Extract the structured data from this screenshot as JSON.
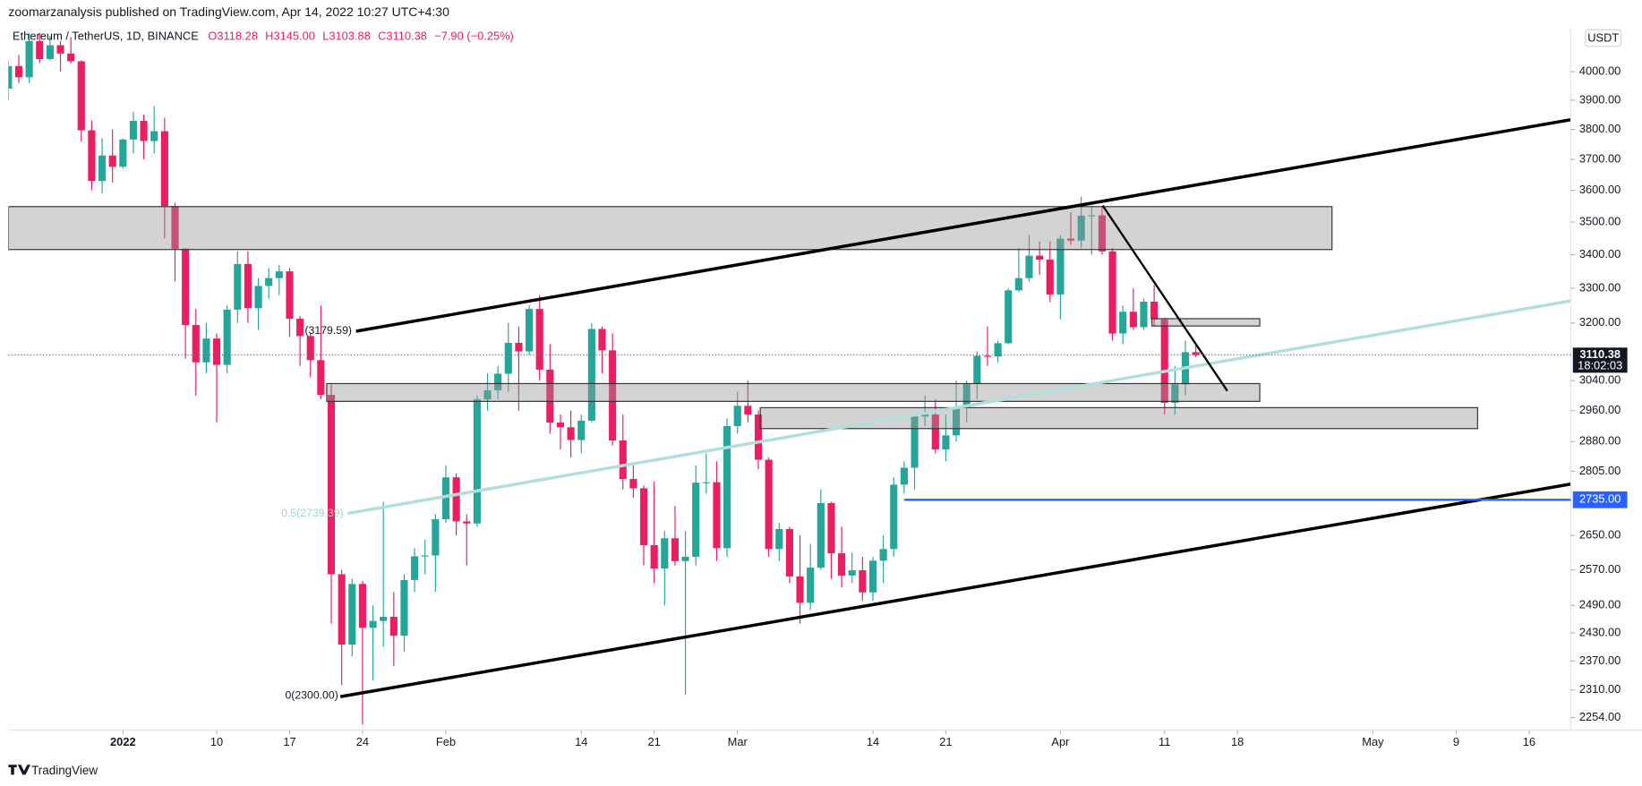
{
  "header": {
    "publisher": "zoomarzanalysis published on TradingView.com, Apr 14, 2022 10:27 UTC+4:30",
    "brand": "TradingView"
  },
  "chart_data": {
    "type": "candlestick",
    "title": "Ethereum / TetherUS, 1D, BINANCE",
    "ohlc_labels": [
      "O3118.28",
      "H3145.00",
      "L3103.88",
      "C3110.38",
      "−7.90 (−0.25%)"
    ],
    "currency": "USDT",
    "up_color": "#26a69a",
    "down_color": "#e91e63",
    "log_scale": true,
    "grid": false,
    "xlim": [
      "2021-12-21",
      "2022-05-20"
    ],
    "ylim": [
      2229,
      4152
    ],
    "yticks": [
      {
        "value": 4000,
        "label": "4000.00"
      },
      {
        "value": 3900,
        "label": "3900.00"
      },
      {
        "value": 3800,
        "label": "3800.00"
      },
      {
        "value": 3700,
        "label": "3700.00"
      },
      {
        "value": 3600,
        "label": "3600.00"
      },
      {
        "value": 3500,
        "label": "3500.00"
      },
      {
        "value": 3400,
        "label": "3400.00"
      },
      {
        "value": 3300,
        "label": "3300.00"
      },
      {
        "value": 3200,
        "label": "3200.00"
      },
      {
        "value": 3040,
        "label": "3040.00"
      },
      {
        "value": 2960,
        "label": "2960.00"
      },
      {
        "value": 2880,
        "label": "2880.00"
      },
      {
        "value": 2805,
        "label": "2805.00"
      },
      {
        "value": 2650,
        "label": "2650.00"
      },
      {
        "value": 2570,
        "label": "2570.00"
      },
      {
        "value": 2490,
        "label": "2490.00"
      },
      {
        "value": 2430,
        "label": "2430.00"
      },
      {
        "value": 2370,
        "label": "2370.00"
      },
      {
        "value": 2310,
        "label": "2310.00"
      },
      {
        "value": 2254,
        "label": "2254.00"
      }
    ],
    "xticks": [
      {
        "value": "2022-01-01",
        "label": "2022"
      },
      {
        "value": "2022-01-10",
        "label": "10"
      },
      {
        "value": "2022-01-17",
        "label": "17"
      },
      {
        "value": "2022-01-24",
        "label": "24"
      },
      {
        "value": "2022-02-01",
        "label": "Feb"
      },
      {
        "value": "2022-02-14",
        "label": "14"
      },
      {
        "value": "2022-02-21",
        "label": "21"
      },
      {
        "value": "2022-03-01",
        "label": "Mar"
      },
      {
        "value": "2022-03-14",
        "label": "14"
      },
      {
        "value": "2022-03-21",
        "label": "21"
      },
      {
        "value": "2022-04-01",
        "label": "Apr"
      },
      {
        "value": "2022-04-11",
        "label": "11"
      },
      {
        "value": "2022-04-18",
        "label": "18"
      },
      {
        "value": "2022-05-01",
        "label": "May"
      },
      {
        "value": "2022-05-09",
        "label": "9"
      },
      {
        "value": "2022-05-16",
        "label": "16"
      }
    ],
    "last_price": {
      "value": 3110.38,
      "label": "3110.38",
      "countdown": "18:02:03"
    },
    "price_line": {
      "value": 2735,
      "label": "2735.00",
      "color": "#2962ff"
    },
    "fib_labels": [
      "(3179.59)",
      "0.5(2739.39)",
      "0(2300.00)"
    ],
    "x": [
      "2021-12-21",
      "2021-12-22",
      "2021-12-23",
      "2021-12-24",
      "2021-12-25",
      "2021-12-26",
      "2021-12-27",
      "2021-12-28",
      "2021-12-29",
      "2021-12-30",
      "2021-12-31",
      "2022-01-01",
      "2022-01-02",
      "2022-01-03",
      "2022-01-04",
      "2022-01-05",
      "2022-01-06",
      "2022-01-07",
      "2022-01-08",
      "2022-01-09",
      "2022-01-10",
      "2022-01-11",
      "2022-01-12",
      "2022-01-13",
      "2022-01-14",
      "2022-01-15",
      "2022-01-16",
      "2022-01-17",
      "2022-01-18",
      "2022-01-19",
      "2022-01-20",
      "2022-01-21",
      "2022-01-22",
      "2022-01-23",
      "2022-01-24",
      "2022-01-25",
      "2022-01-26",
      "2022-01-27",
      "2022-01-28",
      "2022-01-29",
      "2022-01-30",
      "2022-01-31",
      "2022-02-01",
      "2022-02-02",
      "2022-02-03",
      "2022-02-04",
      "2022-02-05",
      "2022-02-06",
      "2022-02-07",
      "2022-02-08",
      "2022-02-09",
      "2022-02-10",
      "2022-02-11",
      "2022-02-12",
      "2022-02-13",
      "2022-02-14",
      "2022-02-15",
      "2022-02-16",
      "2022-02-17",
      "2022-02-18",
      "2022-02-19",
      "2022-02-20",
      "2022-02-21",
      "2022-02-22",
      "2022-02-23",
      "2022-02-24",
      "2022-02-25",
      "2022-02-26",
      "2022-02-27",
      "2022-02-28",
      "2022-03-01",
      "2022-03-02",
      "2022-03-03",
      "2022-03-04",
      "2022-03-05",
      "2022-03-06",
      "2022-03-07",
      "2022-03-08",
      "2022-03-09",
      "2022-03-10",
      "2022-03-11",
      "2022-03-12",
      "2022-03-13",
      "2022-03-14",
      "2022-03-15",
      "2022-03-16",
      "2022-03-17",
      "2022-03-18",
      "2022-03-19",
      "2022-03-20",
      "2022-03-21",
      "2022-03-22",
      "2022-03-23",
      "2022-03-24",
      "2022-03-25",
      "2022-03-26",
      "2022-03-27",
      "2022-03-28",
      "2022-03-29",
      "2022-03-30",
      "2022-03-31",
      "2022-04-01",
      "2022-04-02",
      "2022-04-03",
      "2022-04-04",
      "2022-04-05",
      "2022-04-06",
      "2022-04-07",
      "2022-04-08",
      "2022-04-09",
      "2022-04-10",
      "2022-04-11",
      "2022-04-12",
      "2022-04-13",
      "2022-04-14"
    ],
    "open": [
      3940,
      4020,
      3980,
      4110,
      4045,
      4095,
      4065,
      4037,
      3797,
      3630,
      3713,
      3676,
      3766,
      3829,
      3761,
      3794,
      3550,
      3418,
      3194,
      3090,
      3156,
      3083,
      3238,
      3372,
      3242,
      3307,
      3330,
      3350,
      3212,
      3163,
      3096,
      3002,
      2560,
      2405,
      2538,
      2441,
      2456,
      2465,
      2424,
      2547,
      2601,
      2603,
      2688,
      2790,
      2683,
      2678,
      2990,
      3014,
      3059,
      3144,
      3120,
      3240,
      3070,
      2929,
      2917,
      2884,
      2934,
      3183,
      3123,
      2883,
      2786,
      2763,
      2627,
      2573,
      2643,
      2590,
      2600,
      2777,
      2778,
      2620,
      2920,
      2973,
      2950,
      2834,
      2618,
      2665,
      2555,
      2496,
      2575,
      2727,
      2608,
      2557,
      2569,
      2519,
      2591,
      2618,
      2772,
      2814,
      2945,
      2950,
      2860,
      2896,
      2970,
      3031,
      3108,
      3106,
      3143,
      3294,
      3330,
      3397,
      3385,
      3282,
      3449,
      3443,
      3520,
      3521,
      3410,
      3170,
      3232,
      3188,
      3261,
      3210,
      2981,
      3030,
      3118
    ],
    "high": [
      4040,
      4060,
      4140,
      4140,
      4130,
      4110,
      4125,
      4040,
      3830,
      3770,
      3800,
      3770,
      3860,
      3850,
      3880,
      3840,
      3560,
      3420,
      3240,
      3200,
      3170,
      3250,
      3410,
      3410,
      3330,
      3360,
      3370,
      3360,
      3220,
      3170,
      3250,
      3030,
      2570,
      2550,
      2545,
      2490,
      2730,
      2520,
      2560,
      2620,
      2640,
      2700,
      2820,
      2800,
      2700,
      3000,
      3060,
      3080,
      3200,
      3190,
      3250,
      3280,
      3140,
      2950,
      2960,
      2950,
      3200,
      3190,
      3170,
      2950,
      2820,
      2770,
      2780,
      2660,
      2720,
      2660,
      2820,
      2850,
      2830,
      2940,
      3010,
      3040,
      2960,
      2840,
      2680,
      2670,
      2650,
      2630,
      2760,
      2730,
      2670,
      2610,
      2600,
      2600,
      2650,
      2790,
      2830,
      2950,
      3000,
      2990,
      2950,
      3040,
      3040,
      3120,
      3190,
      3150,
      3300,
      3420,
      3460,
      3440,
      3440,
      3460,
      3530,
      3580,
      3550,
      3550,
      3420,
      3250,
      3300,
      3270,
      3310,
      3215,
      3080,
      3150,
      3145
    ],
    "low": [
      3900,
      3960,
      3960,
      4030,
      4040,
      4000,
      4030,
      3760,
      3600,
      3590,
      3625,
      3670,
      3720,
      3700,
      3720,
      3450,
      3320,
      3100,
      3000,
      3060,
      2930,
      3060,
      3200,
      3200,
      3180,
      3270,
      3280,
      3160,
      3080,
      3050,
      2990,
      2450,
      2320,
      2380,
      2240,
      2330,
      2400,
      2360,
      2390,
      2520,
      2560,
      2520,
      2680,
      2650,
      2580,
      2670,
      2960,
      2990,
      3010,
      2960,
      3110,
      3040,
      2900,
      2860,
      2840,
      2850,
      2930,
      3060,
      2870,
      2760,
      2740,
      2580,
      2540,
      2490,
      2580,
      2300,
      2580,
      2750,
      2590,
      2600,
      2900,
      2930,
      2810,
      2600,
      2590,
      2540,
      2450,
      2480,
      2570,
      2550,
      2530,
      2540,
      2500,
      2500,
      2540,
      2600,
      2750,
      2760,
      2920,
      2850,
      2830,
      2880,
      2930,
      2990,
      3080,
      3090,
      3140,
      3290,
      3320,
      3340,
      3260,
      3210,
      3430,
      3420,
      3400,
      3400,
      3150,
      3140,
      3180,
      3180,
      3190,
      2950,
      2950,
      3000,
      3104
    ],
    "close": [
      4020,
      3980,
      4110,
      4045,
      4095,
      4065,
      4037,
      3797,
      3630,
      3713,
      3676,
      3766,
      3829,
      3761,
      3794,
      3550,
      3418,
      3194,
      3090,
      3156,
      3083,
      3238,
      3372,
      3242,
      3307,
      3330,
      3350,
      3212,
      3163,
      3096,
      3002,
      2560,
      2405,
      2538,
      2441,
      2456,
      2465,
      2424,
      2547,
      2601,
      2603,
      2688,
      2790,
      2683,
      2678,
      2990,
      3014,
      3059,
      3144,
      3120,
      3240,
      3070,
      2929,
      2917,
      2884,
      2934,
      3183,
      3123,
      2883,
      2786,
      2763,
      2627,
      2573,
      2643,
      2590,
      2600,
      2777,
      2778,
      2620,
      2920,
      2973,
      2950,
      2834,
      2618,
      2665,
      2555,
      2496,
      2575,
      2727,
      2608,
      2557,
      2569,
      2519,
      2591,
      2618,
      2772,
      2814,
      2945,
      2950,
      2860,
      2896,
      2970,
      3031,
      3108,
      3106,
      3143,
      3294,
      3330,
      3397,
      3385,
      3282,
      3449,
      3443,
      3520,
      3521,
      3410,
      3170,
      3232,
      3188,
      3261,
      3210,
      2981,
      3030,
      3118,
      3110
    ]
  }
}
